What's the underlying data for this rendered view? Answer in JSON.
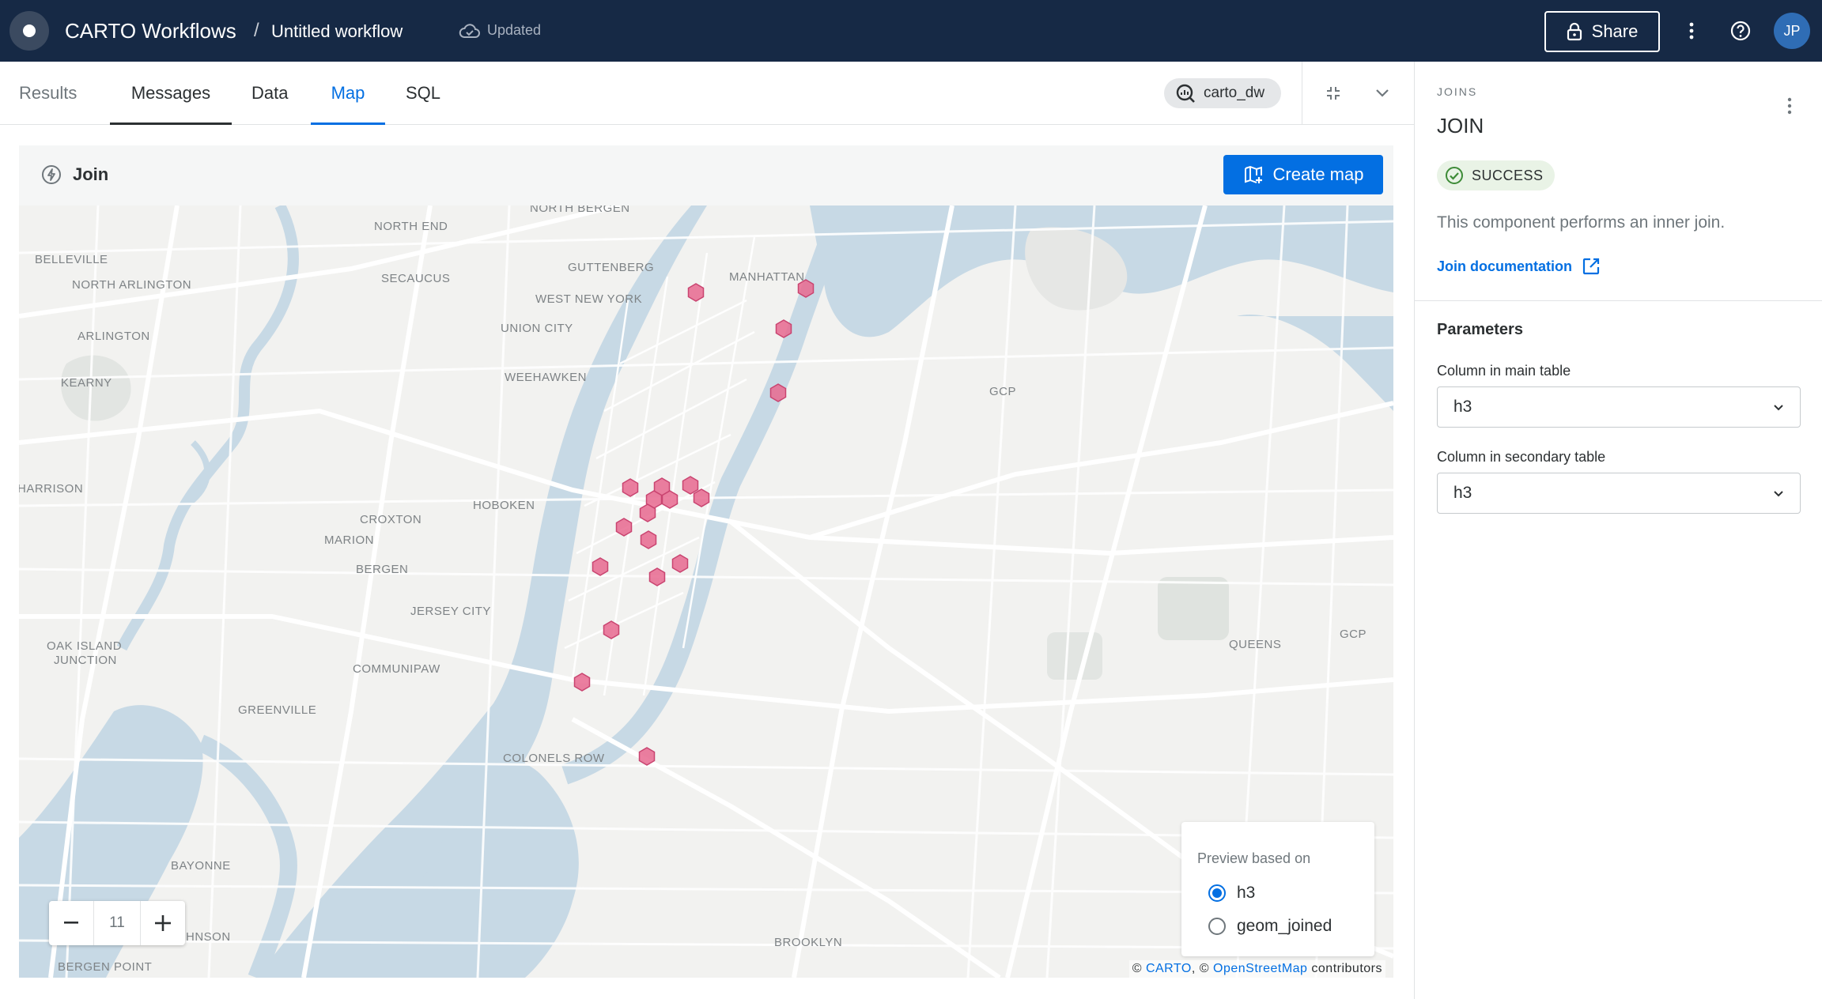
{
  "header": {
    "app_title": "CARTO Workflows",
    "separator": "/",
    "workflow_name": "Untitled workflow",
    "save_status": "Updated",
    "share_label": "Share",
    "user_initials": "JP"
  },
  "tabs": {
    "results": "Results",
    "messages": "Messages",
    "data": "Data",
    "map": "Map",
    "sql": "SQL",
    "connection": "carto_dw"
  },
  "map_panel": {
    "title": "Join",
    "create_map_label": "Create map",
    "zoom_level": "11",
    "legend_title": "Preview based on",
    "legend_options": [
      "h3",
      "geom_joined"
    ],
    "legend_selected": "h3",
    "attribution_prefix": "©",
    "attribution_carto": "CARTO",
    "attribution_mid": ", ©",
    "attribution_osm": "OpenStreetMap",
    "attribution_suffix": "contributors",
    "hex_color": "#e8698f",
    "places": [
      "NORTH BERGEN",
      "NORTH END",
      "BELLEVILLE",
      "NORTH ARLINGTON",
      "SECAUCUS",
      "GUTTENBERG",
      "MANHATTAN",
      "WEST NEW YORK",
      "ARLINGTON",
      "UNION CITY",
      "KEARNY",
      "WEEHAWKEN",
      "GCP",
      "HARRISON",
      "HOBOKEN",
      "CROXTON",
      "MARION",
      "BERGEN",
      "JERSEY CITY",
      "OAK ISLAND",
      "JUNCTION",
      "COMMUNIPAW",
      "QUEENS",
      "GCP",
      "GREENVILLE",
      "COLONELS ROW",
      "BAYONNE",
      "HNSON",
      "BROOKLYN",
      "BERGEN POINT"
    ]
  },
  "right_panel": {
    "overline": "JOINS",
    "title": "JOIN",
    "status": "SUCCESS",
    "description": "This component performs an inner join.",
    "doc_link": "Join documentation",
    "params_heading": "Parameters",
    "main_column_label": "Column in main table",
    "main_column_value": "h3",
    "secondary_column_label": "Column in secondary table",
    "secondary_column_value": "h3"
  }
}
